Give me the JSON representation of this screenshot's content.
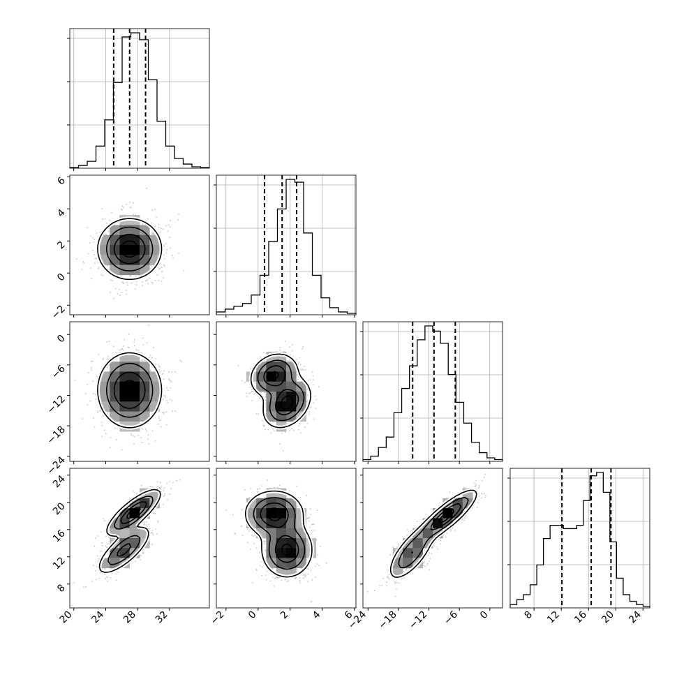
{
  "chart_data": {
    "type": "corner",
    "title": "",
    "parameters": [
      {
        "label": "",
        "range": [
          19.5,
          37
        ],
        "ticks": [
          "20",
          "24",
          "28",
          "32"
        ],
        "tick_values": [
          20,
          24,
          28,
          32
        ],
        "mean": 27.0,
        "sd": 1.9,
        "quantiles": [
          25.0,
          27.0,
          29.0
        ]
      },
      {
        "label": "",
        "range": [
          -2.6,
          6.1
        ],
        "ticks": [
          "−2",
          "0",
          "2",
          "4",
          "6"
        ],
        "tick_values": [
          -2,
          0,
          2,
          4,
          6
        ],
        "mean": 1.5,
        "sd": 0.95,
        "quantiles": [
          0.4,
          1.5,
          2.4
        ]
      },
      {
        "label": "",
        "range": [
          -25,
          2.5
        ],
        "ticks": [
          "−24",
          "−18",
          "−12",
          "−6",
          "0"
        ],
        "tick_values": [
          -24,
          -18,
          -12,
          -6,
          0
        ],
        "mean": -11,
        "sd": 3.8,
        "quantiles": [
          -15.2,
          -11.0,
          -6.8
        ]
      },
      {
        "label": "",
        "range": [
          4.5,
          25
        ],
        "ticks": [
          "8",
          "12",
          "16",
          "20",
          "24"
        ],
        "tick_values": [
          8,
          12,
          16,
          20,
          24
        ],
        "mean": 16.4,
        "sd": 3.5,
        "quantiles": [
          12.1,
          16.4,
          19.3
        ]
      }
    ],
    "histograms": [
      {
        "param": 0,
        "counts": [
          0.5,
          2,
          5,
          16,
          35,
          62,
          95,
          98,
          93,
          64,
          34,
          16,
          7,
          3,
          1,
          0.5
        ]
      },
      {
        "param": 1,
        "counts": [
          2,
          4,
          6,
          8,
          14,
          28,
          52,
          75,
          96,
          94,
          58,
          28,
          12,
          5,
          2,
          1
        ]
      },
      {
        "param": 2,
        "counts": [
          1,
          3,
          8,
          14,
          28,
          42,
          55,
          70,
          78,
          75,
          68,
          50,
          34,
          22,
          11,
          5,
          2,
          1
        ]
      },
      {
        "param": 3,
        "counts": [
          2,
          5,
          8,
          14,
          26,
          42,
          50,
          50,
          48,
          48,
          50,
          65,
          80,
          82,
          70,
          40,
          18,
          8,
          4,
          2,
          1
        ]
      }
    ],
    "pairs": [
      {
        "x": 0,
        "y": 1,
        "components": [
          {
            "mx": 27,
            "my": 1.5,
            "sx": 1.9,
            "sy": 0.9,
            "rho": 0,
            "w": 1
          }
        ]
      },
      {
        "x": 0,
        "y": 2,
        "components": [
          {
            "mx": 27,
            "my": -11,
            "sx": 1.9,
            "sy": 3.5,
            "rho": 0,
            "w": 1
          }
        ]
      },
      {
        "x": 1,
        "y": 2,
        "components": [
          {
            "mx": 1.0,
            "my": -8,
            "sx": 0.7,
            "sy": 2.0,
            "rho": 0.2,
            "w": 0.45
          },
          {
            "mx": 1.8,
            "my": -13.5,
            "sx": 0.7,
            "sy": 2.3,
            "rho": 0.3,
            "w": 0.55
          }
        ]
      },
      {
        "x": 0,
        "y": 3,
        "components": [
          {
            "mx": 27.5,
            "my": 18.5,
            "sx": 1.6,
            "sy": 1.6,
            "rho": 0.8,
            "w": 0.55
          },
          {
            "mx": 26.3,
            "my": 13.0,
            "sx": 1.6,
            "sy": 1.7,
            "rho": 0.75,
            "w": 0.45
          }
        ]
      },
      {
        "x": 1,
        "y": 3,
        "components": [
          {
            "mx": 1.0,
            "my": 18.3,
            "sx": 0.85,
            "sy": 1.6,
            "rho": 0,
            "w": 0.5
          },
          {
            "mx": 1.8,
            "my": 13.0,
            "sx": 0.75,
            "sy": 1.9,
            "rho": 0,
            "w": 0.5
          }
        ]
      },
      {
        "x": 2,
        "y": 3,
        "components": [
          {
            "mx": -8.5,
            "my": 18.0,
            "sx": 2.8,
            "sy": 1.8,
            "rho": 0.85,
            "w": 0.6
          },
          {
            "mx": -15.5,
            "my": 12.5,
            "sx": 2.2,
            "sy": 1.9,
            "rho": 0.7,
            "w": 0.4
          }
        ]
      }
    ]
  }
}
